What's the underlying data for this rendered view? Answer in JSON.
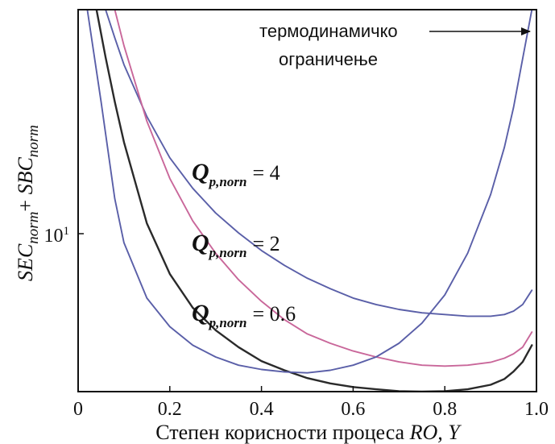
{
  "chart_data": {
    "type": "line",
    "xlabel": {
      "prefix": "Степен корисности процеса ",
      "italic": "RO, Y"
    },
    "ylabel": {
      "part1": "SEC",
      "sub1": "norm",
      "plus": "+ ",
      "part2": "SBC",
      "sub2": "norm"
    },
    "xlim": [
      0,
      1
    ],
    "ylim": [
      5.3,
      25
    ],
    "y_scale": "log",
    "x_ticks": [
      0,
      0.2,
      0.4,
      0.6,
      0.8,
      1.0
    ],
    "x_tick_labels": [
      "0",
      "0.2",
      "0.4",
      "0.6",
      "0.8",
      "1.0"
    ],
    "y_tick": {
      "value": 10,
      "base": "10",
      "exp": "1"
    },
    "grid": false,
    "colors": {
      "blue": "#5a5fa8",
      "pink": "#c9679a",
      "black": "#2a2a2a"
    },
    "series": [
      {
        "color": "blue",
        "x": [
          0.06,
          0.08,
          0.1,
          0.15,
          0.2,
          0.25,
          0.3,
          0.35,
          0.4,
          0.45,
          0.5,
          0.55,
          0.6,
          0.65,
          0.7,
          0.75,
          0.8,
          0.85,
          0.88,
          0.9,
          0.93,
          0.95,
          0.97,
          0.99
        ],
        "y": [
          25,
          22.3,
          20,
          16.2,
          13.7,
          12.1,
          10.95,
          10.1,
          9.4,
          8.85,
          8.4,
          8.05,
          7.75,
          7.55,
          7.4,
          7.3,
          7.25,
          7.2,
          7.2,
          7.2,
          7.25,
          7.35,
          7.55,
          8.0
        ]
      },
      {
        "color": "pink",
        "x": [
          0.08,
          0.1,
          0.15,
          0.2,
          0.25,
          0.3,
          0.35,
          0.4,
          0.45,
          0.5,
          0.55,
          0.6,
          0.65,
          0.7,
          0.75,
          0.8,
          0.85,
          0.9,
          0.93,
          0.95,
          0.97,
          0.99
        ],
        "y": [
          25,
          21.6,
          15.9,
          12.6,
          10.6,
          9.3,
          8.35,
          7.65,
          7.1,
          6.7,
          6.45,
          6.25,
          6.1,
          5.98,
          5.9,
          5.88,
          5.9,
          5.97,
          6.07,
          6.18,
          6.35,
          6.75
        ]
      },
      {
        "color": "black",
        "x": [
          0.04,
          0.06,
          0.08,
          0.1,
          0.15,
          0.2,
          0.25,
          0.3,
          0.35,
          0.4,
          0.45,
          0.5,
          0.55,
          0.6,
          0.65,
          0.7,
          0.75,
          0.8,
          0.85,
          0.9,
          0.93,
          0.95,
          0.97,
          0.99
        ],
        "y": [
          25,
          20.6,
          17.2,
          14.6,
          10.5,
          8.55,
          7.45,
          6.8,
          6.35,
          6.0,
          5.78,
          5.6,
          5.48,
          5.4,
          5.35,
          5.31,
          5.3,
          5.31,
          5.35,
          5.45,
          5.58,
          5.75,
          5.98,
          6.4
        ]
      },
      {
        "color": "blue",
        "x": [
          0.02,
          0.05,
          0.08,
          0.1,
          0.15,
          0.2,
          0.25,
          0.3,
          0.35,
          0.4,
          0.45,
          0.5,
          0.55,
          0.6,
          0.65,
          0.7,
          0.75,
          0.8,
          0.85,
          0.9,
          0.93,
          0.95,
          0.97,
          0.99
        ],
        "y": [
          25,
          17.2,
          11.6,
          9.7,
          7.75,
          6.9,
          6.4,
          6.1,
          5.9,
          5.8,
          5.74,
          5.72,
          5.78,
          5.9,
          6.1,
          6.45,
          7.0,
          7.85,
          9.3,
          11.8,
          14.3,
          16.8,
          20.5,
          25
        ]
      }
    ],
    "annotations": [
      {
        "type": "series_label",
        "Q": "Q",
        "sub": "p,norn",
        "text": "= 4"
      },
      {
        "type": "series_label",
        "Q": "Q",
        "sub": "p,norn",
        "text": "= 2"
      },
      {
        "type": "series_label",
        "Q": "Q",
        "sub": "p,norn",
        "text": "= 0.6"
      },
      {
        "type": "callout",
        "lines": [
          "термодинамичко",
          "ограничење"
        ]
      }
    ]
  }
}
